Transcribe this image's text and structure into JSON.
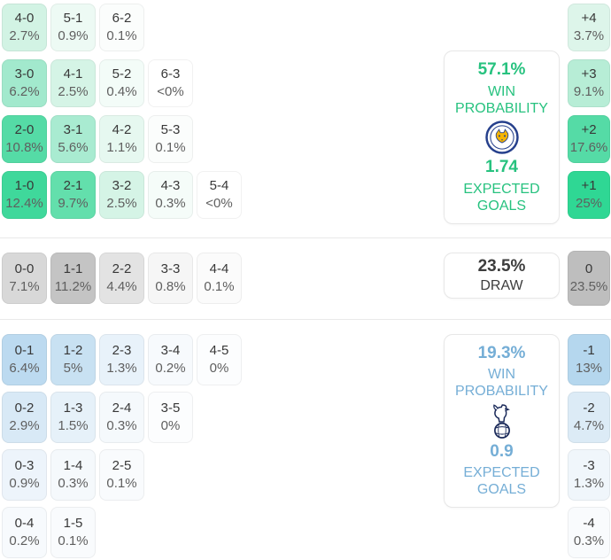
{
  "colors": {
    "home_accent": "#27c27f",
    "away_accent": "#75aed6",
    "draw_text": "#3d3d3d",
    "separator": "#e9e9e9",
    "panel_border": "#e7e7e7",
    "cell_score_text": "#383838",
    "cell_pct_text": "#5f5f5f",
    "home_badge_navy": "#26408c",
    "home_badge_gold": "#f7b500",
    "away_badge_navy": "#1b2a5a"
  },
  "sections": {
    "home": {
      "rows": [
        [
          {
            "score": "4-0",
            "pct": "2.7%",
            "bg": "#d2f3e4"
          },
          {
            "score": "5-1",
            "pct": "0.9%",
            "bg": "#edfaf4"
          },
          {
            "score": "6-2",
            "pct": "0.1%",
            "bg": "#fbfdfc"
          }
        ],
        [
          {
            "score": "3-0",
            "pct": "6.2%",
            "bg": "#a2e9cd"
          },
          {
            "score": "4-1",
            "pct": "2.5%",
            "bg": "#d5f4e6"
          },
          {
            "score": "5-2",
            "pct": "0.4%",
            "bg": "#f3fcf8"
          },
          {
            "score": "6-3",
            "pct": "<0%",
            "bg": "#ffffff"
          }
        ],
        [
          {
            "score": "2-0",
            "pct": "10.8%",
            "bg": "#55dba6"
          },
          {
            "score": "3-1",
            "pct": "5.6%",
            "bg": "#a9ebd1"
          },
          {
            "score": "4-2",
            "pct": "1.1%",
            "bg": "#e6f8f0"
          },
          {
            "score": "5-3",
            "pct": "0.1%",
            "bg": "#fbfdfc"
          }
        ],
        [
          {
            "score": "1-0",
            "pct": "12.4%",
            "bg": "#3fd89b"
          },
          {
            "score": "2-1",
            "pct": "9.7%",
            "bg": "#63dfac"
          },
          {
            "score": "3-2",
            "pct": "2.5%",
            "bg": "#d5f4e6"
          },
          {
            "score": "4-3",
            "pct": "0.3%",
            "bg": "#f5fcf9"
          },
          {
            "score": "5-4",
            "pct": "<0%",
            "bg": "#ffffff"
          }
        ]
      ],
      "margins": [
        {
          "margin": "+4",
          "pct": "3.7%",
          "bg": "#ddf5ea"
        },
        {
          "margin": "+3",
          "pct": "9.1%",
          "bg": "#b7edd6"
        },
        {
          "margin": "+2",
          "pct": "17.6%",
          "bg": "#55dba6"
        },
        {
          "margin": "+1",
          "pct": "25%",
          "bg": "#2fd794"
        }
      ],
      "panel": {
        "win_pct": "57.1%",
        "win_label": "WIN PROBABILITY",
        "badge_icon": "leicester-city-crest",
        "xg": "1.74",
        "xg_label": "EXPECTED GOALS"
      }
    },
    "draw": {
      "rows": [
        [
          {
            "score": "0-0",
            "pct": "7.1%",
            "bg": "#d8d8d8"
          },
          {
            "score": "1-1",
            "pct": "11.2%",
            "bg": "#c4c4c4"
          },
          {
            "score": "2-2",
            "pct": "4.4%",
            "bg": "#e3e3e3"
          },
          {
            "score": "3-3",
            "pct": "0.8%",
            "bg": "#f6f6f6"
          },
          {
            "score": "4-4",
            "pct": "0.1%",
            "bg": "#fbfbfb"
          }
        ]
      ],
      "margins": [
        {
          "margin": "0",
          "pct": "23.5%",
          "bg": "#bebebe"
        }
      ],
      "panel": {
        "pct": "23.5%",
        "label": "DRAW"
      }
    },
    "away": {
      "rows": [
        [
          {
            "score": "0-1",
            "pct": "6.4%",
            "bg": "#bcdaf0"
          },
          {
            "score": "1-2",
            "pct": "5%",
            "bg": "#c8e1f2"
          },
          {
            "score": "2-3",
            "pct": "1.3%",
            "bg": "#e8f2fa"
          },
          {
            "score": "3-4",
            "pct": "0.2%",
            "bg": "#f7fafd"
          },
          {
            "score": "4-5",
            "pct": "0%",
            "bg": "#fcfdfe"
          }
        ],
        [
          {
            "score": "0-2",
            "pct": "2.9%",
            "bg": "#d8e9f6"
          },
          {
            "score": "1-3",
            "pct": "1.5%",
            "bg": "#e6f1f9"
          },
          {
            "score": "2-4",
            "pct": "0.3%",
            "bg": "#f5f9fc"
          },
          {
            "score": "3-5",
            "pct": "0%",
            "bg": "#fcfdfe"
          }
        ],
        [
          {
            "score": "0-3",
            "pct": "0.9%",
            "bg": "#edf4fb"
          },
          {
            "score": "1-4",
            "pct": "0.3%",
            "bg": "#f5f9fc"
          },
          {
            "score": "2-5",
            "pct": "0.1%",
            "bg": "#f9fbfd"
          }
        ],
        [
          {
            "score": "0-4",
            "pct": "0.2%",
            "bg": "#f7fafd"
          },
          {
            "score": "1-5",
            "pct": "0.1%",
            "bg": "#f9fbfd"
          }
        ]
      ],
      "margins": [
        {
          "margin": "-1",
          "pct": "13%",
          "bg": "#b5d7ee"
        },
        {
          "margin": "-2",
          "pct": "4.7%",
          "bg": "#dcebf6"
        },
        {
          "margin": "-3",
          "pct": "1.3%",
          "bg": "#f0f6fb"
        },
        {
          "margin": "-4",
          "pct": "0.3%",
          "bg": "#f9fbfd"
        }
      ],
      "panel": {
        "win_pct": "19.3%",
        "win_label": "WIN PROBABILITY",
        "badge_icon": "cockerel-on-ball-crest",
        "xg": "0.9",
        "xg_label": "EXPECTED GOALS"
      }
    }
  },
  "chart_data": {
    "type": "heatmap",
    "title": "Correct score, win probability and goal-margin probabilities",
    "legend_position": "right",
    "home": {
      "win_probability_pct": 57.1,
      "expected_goals": 1.74,
      "score_probabilities": {
        "4-0": 2.7,
        "5-1": 0.9,
        "6-2": 0.1,
        "3-0": 6.2,
        "4-1": 2.5,
        "5-2": 0.4,
        "6-3": 0,
        "2-0": 10.8,
        "3-1": 5.6,
        "4-2": 1.1,
        "5-3": 0.1,
        "1-0": 12.4,
        "2-1": 9.7,
        "3-2": 2.5,
        "4-3": 0.3,
        "5-4": 0
      },
      "goal_margin_pct": {
        "+4": 3.7,
        "+3": 9.1,
        "+2": 17.6,
        "+1": 25
      }
    },
    "draw": {
      "probability_pct": 23.5,
      "score_probabilities": {
        "0-0": 7.1,
        "1-1": 11.2,
        "2-2": 4.4,
        "3-3": 0.8,
        "4-4": 0.1
      },
      "goal_margin_pct": {
        "0": 23.5
      }
    },
    "away": {
      "win_probability_pct": 19.3,
      "expected_goals": 0.9,
      "score_probabilities": {
        "0-1": 6.4,
        "1-2": 5,
        "2-3": 1.3,
        "3-4": 0.2,
        "4-5": 0,
        "0-2": 2.9,
        "1-3": 1.5,
        "2-4": 0.3,
        "3-5": 0,
        "0-3": 0.9,
        "1-4": 0.3,
        "2-5": 0.1,
        "0-4": 0.2,
        "1-5": 0.1
      },
      "goal_margin_pct": {
        "-1": 13,
        "-2": 4.7,
        "-3": 1.3,
        "-4": 0.3
      }
    }
  }
}
